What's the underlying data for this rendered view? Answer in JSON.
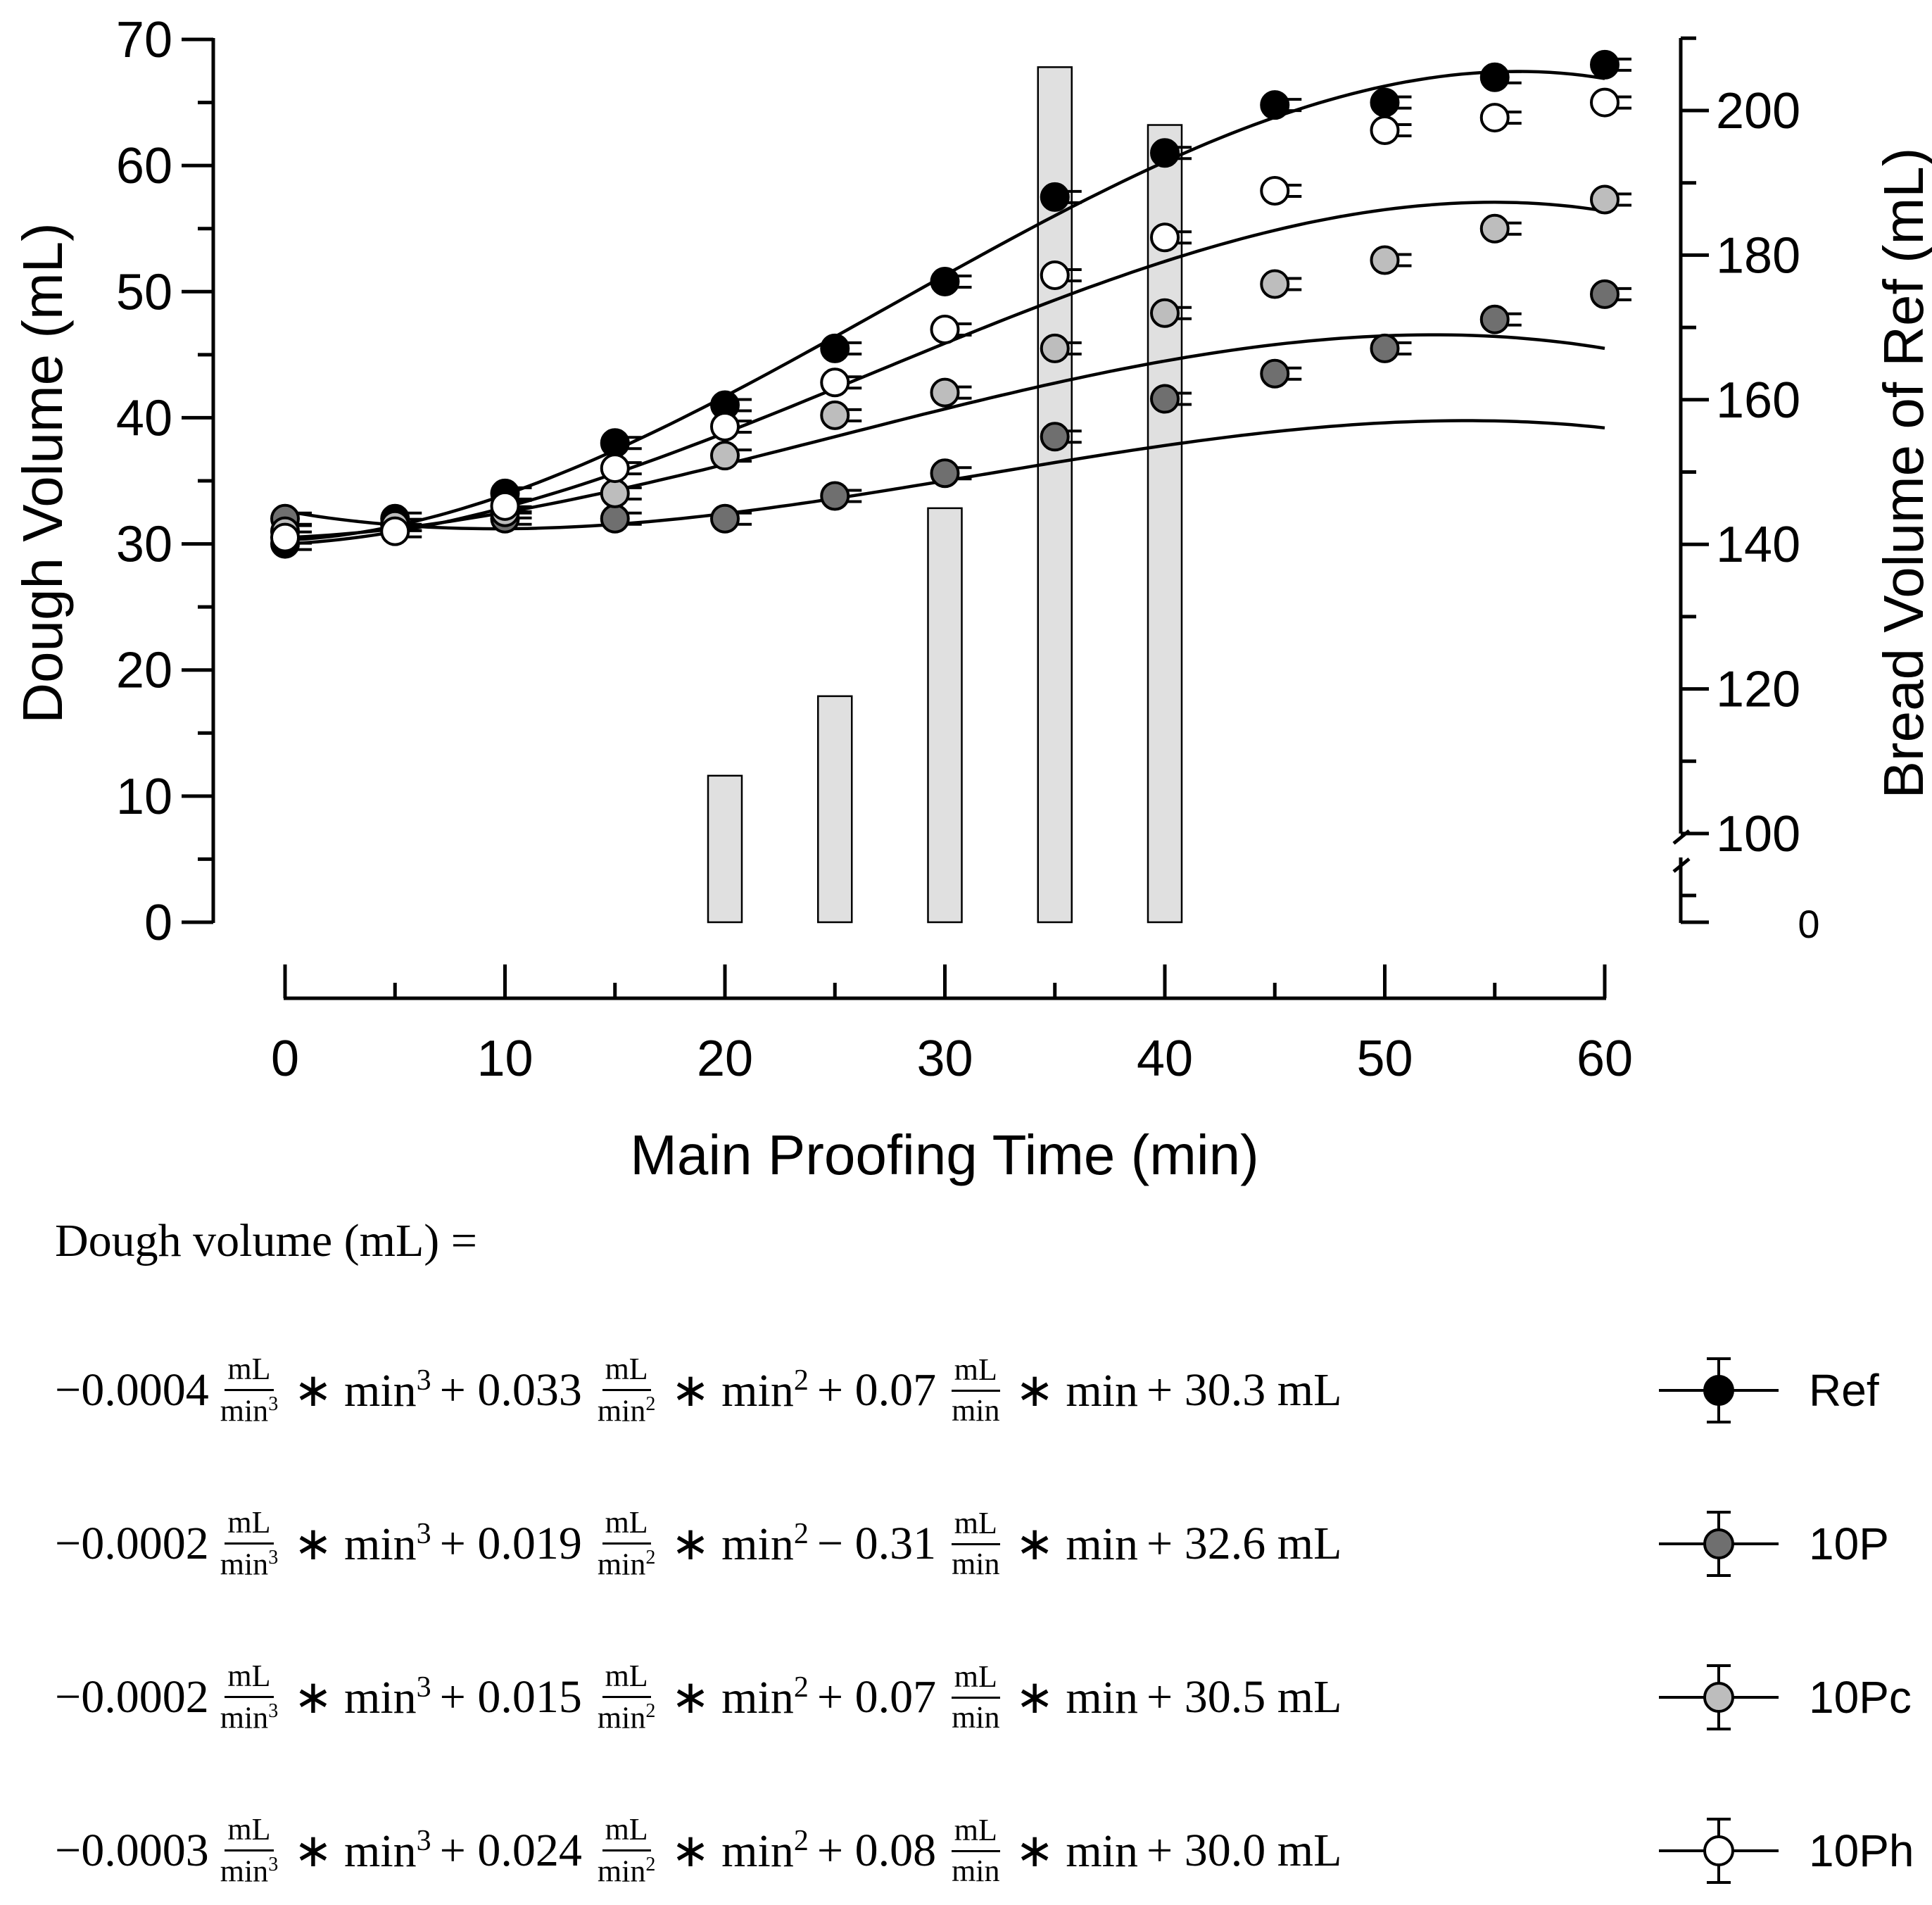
{
  "chart_data": {
    "type": "line",
    "title": "",
    "xlabel": "Main Proofing Time (min)",
    "ylabel": "Dough Volume (mL)",
    "y2label": "Bread Volume of Ref (mL)",
    "xlim": [
      0,
      60
    ],
    "ylim": [
      0,
      70
    ],
    "y2lim": [
      100,
      210
    ],
    "y2_axis_break": true,
    "x_ticks": [
      "0",
      "10",
      "20",
      "30",
      "40",
      "50",
      "60"
    ],
    "y_ticks": [
      "0",
      "10",
      "20",
      "30",
      "40",
      "50",
      "60",
      "70"
    ],
    "y2_ticks": [
      "0",
      "100",
      "120",
      "140",
      "160",
      "180",
      "200"
    ],
    "grid": false,
    "x": [
      0,
      5,
      10,
      15,
      20,
      25,
      30,
      35,
      40,
      45,
      50,
      55,
      60
    ],
    "series": [
      {
        "name": "Ref",
        "marker_fill": "#000000",
        "values": [
          30.0,
          32.0,
          34.0,
          38.0,
          41.0,
          45.5,
          50.8,
          57.5,
          61.0,
          64.8,
          65.0,
          67.0,
          68.0
        ],
        "fit": [
          -0.0004,
          0.033,
          0.07,
          30.3
        ]
      },
      {
        "name": "10P",
        "marker_fill": "#6f6f6f",
        "values": [
          32.0,
          31.5,
          32.0,
          32.0,
          32.0,
          33.8,
          35.6,
          38.5,
          41.5,
          43.5,
          45.5,
          47.8,
          49.8
        ],
        "fit": [
          -0.0002,
          0.019,
          -0.31,
          32.6
        ]
      },
      {
        "name": "10Pc",
        "marker_fill": "#bdbdbd",
        "values": [
          31.0,
          31.5,
          32.5,
          34.0,
          37.0,
          40.2,
          42.0,
          45.5,
          48.3,
          50.6,
          52.5,
          55.0,
          57.3
        ],
        "fit": [
          -0.0002,
          0.015,
          0.07,
          30.5
        ]
      },
      {
        "name": "10Ph",
        "marker_fill": "#ffffff",
        "values": [
          30.5,
          31.0,
          33.0,
          36.0,
          39.3,
          42.8,
          47.0,
          51.3,
          54.3,
          58.0,
          62.8,
          63.8,
          65.0
        ],
        "fit": [
          -0.0003,
          0.024,
          0.08,
          30.0
        ]
      }
    ],
    "bars": {
      "axis": "y2",
      "color": "#e0e0e0",
      "x": [
        20,
        25,
        30,
        35,
        40
      ],
      "values": [
        108,
        119,
        145,
        206,
        198
      ]
    },
    "legend_position": "bottom-right"
  },
  "equations": {
    "header": "Dough volume (mL) =",
    "unit_num": "mL",
    "unit_den": "min",
    "rows": [
      {
        "c3": "−0.0004",
        "op2": "+",
        "c2": "0.033",
        "op1": "+",
        "c1": "0.07",
        "op0": "+",
        "c0": "30.3 mL"
      },
      {
        "c3": "−0.0002",
        "op2": "+",
        "c2": "0.019",
        "op1": "−",
        "c1": "0.31",
        "op0": "+",
        "c0": "32.6 mL"
      },
      {
        "c3": "−0.0002",
        "op2": "+",
        "c2": "0.015",
        "op1": "+",
        "c1": "0.07",
        "op0": "+",
        "c0": "30.5 mL"
      },
      {
        "c3": "−0.0003",
        "op2": "+",
        "c2": "0.024",
        "op1": "+",
        "c1": "0.08",
        "op0": "+",
        "c0": "30.0 mL"
      }
    ]
  },
  "legend": [
    {
      "label": "Ref",
      "fill": "#000000"
    },
    {
      "label": "10P",
      "fill": "#6f6f6f"
    },
    {
      "label": "10Pc",
      "fill": "#bdbdbd"
    },
    {
      "label": "10Ph",
      "fill": "#ffffff"
    }
  ]
}
